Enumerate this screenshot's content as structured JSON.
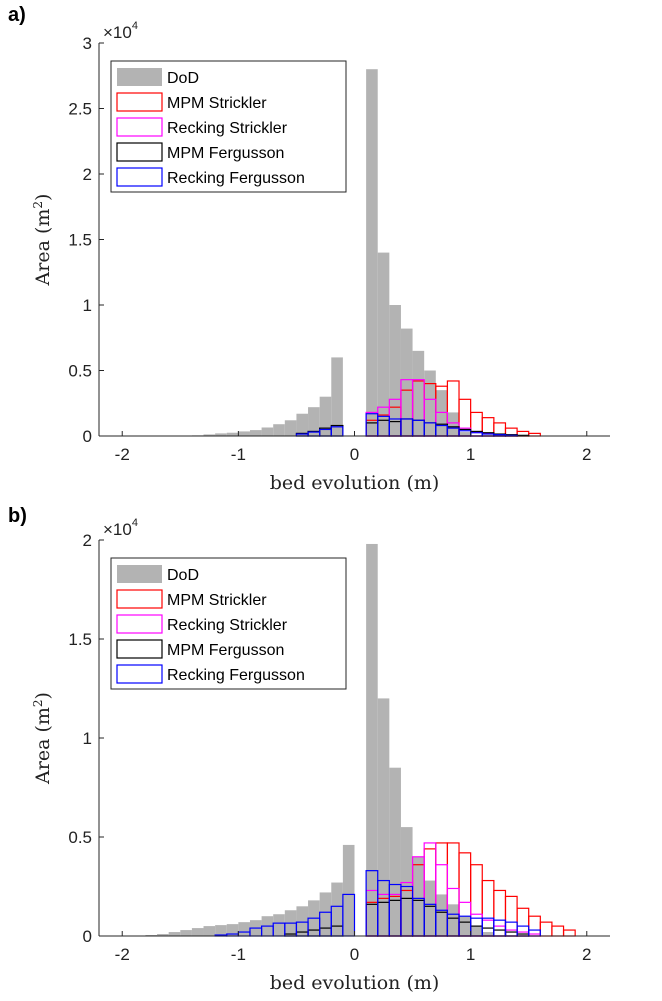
{
  "panels": [
    {
      "letter": "a)"
    },
    {
      "letter": "b)"
    }
  ],
  "chart_data": [
    {
      "type": "bar",
      "panel": "a)",
      "xlabel": "bed evolution (m)",
      "ylabel_main": "Area (m",
      "ylabel_sup": "2",
      "ylabel_end": ")",
      "xlim": [
        -2.2,
        2.2
      ],
      "ylim": [
        0,
        30000
      ],
      "xticks": [
        -2,
        -1,
        0,
        1,
        2
      ],
      "yticks": [
        0,
        5000,
        10000,
        15000,
        20000,
        25000,
        30000
      ],
      "ytick_labels": [
        "0",
        "0.5",
        "1",
        "1.5",
        "2",
        "2.5",
        "3"
      ],
      "exponent_base": "×10",
      "exponent_power": "4",
      "grid": false,
      "legend_position": "top-left",
      "bin_edges": [
        -2.0,
        -1.9,
        -1.8,
        -1.7,
        -1.6,
        -1.5,
        -1.4,
        -1.3,
        -1.2,
        -1.1,
        -1.0,
        -0.9,
        -0.8,
        -0.7,
        -0.6,
        -0.5,
        -0.4,
        -0.3,
        -0.2,
        -0.1,
        0.0,
        0.1,
        0.2,
        0.3,
        0.4,
        0.5,
        0.6,
        0.7,
        0.8,
        0.9,
        1.0,
        1.1,
        1.2,
        1.3,
        1.4,
        1.5,
        1.6,
        1.7,
        1.8,
        1.9,
        2.0
      ],
      "series": [
        {
          "name": "DoD",
          "style": "filled",
          "color": "#b3b3b3",
          "values": [
            0,
            0,
            0,
            0,
            10,
            20,
            50,
            120,
            200,
            250,
            350,
            450,
            650,
            900,
            1200,
            1700,
            2200,
            3000,
            6000,
            0,
            0,
            28000,
            14000,
            10000,
            8200,
            6500,
            5000,
            3500,
            1800,
            300,
            0,
            0,
            0,
            0,
            0,
            0,
            0,
            0,
            0,
            0
          ]
        },
        {
          "name": "MPM Strickler",
          "style": "step",
          "color": "#ff0000",
          "values": [
            0,
            0,
            0,
            0,
            0,
            0,
            0,
            0,
            0,
            0,
            0,
            0,
            0,
            0,
            0,
            0,
            0,
            0,
            0,
            0,
            0,
            1200,
            1600,
            2200,
            3500,
            4200,
            4000,
            3800,
            4200,
            2800,
            1800,
            1400,
            1000,
            600,
            350,
            200,
            0,
            0,
            0,
            0
          ]
        },
        {
          "name": "Recking Strickler",
          "style": "step",
          "color": "#ff00ff",
          "values": [
            0,
            0,
            0,
            0,
            0,
            0,
            0,
            0,
            0,
            0,
            0,
            0,
            0,
            0,
            0,
            0,
            0,
            0,
            0,
            0,
            0,
            1800,
            2200,
            2800,
            4300,
            4300,
            2800,
            1800,
            1000,
            600,
            300,
            200,
            100,
            50,
            0,
            0,
            0,
            0,
            0,
            0
          ]
        },
        {
          "name": "MPM Fergusson",
          "style": "step",
          "color": "#000000",
          "values": [
            0,
            0,
            0,
            0,
            0,
            0,
            0,
            0,
            0,
            0,
            0,
            0,
            0,
            0,
            0,
            200,
            350,
            600,
            800,
            0,
            0,
            1000,
            1200,
            1100,
            1300,
            1200,
            1000,
            900,
            700,
            500,
            350,
            250,
            150,
            100,
            50,
            0,
            0,
            0,
            0,
            0
          ]
        },
        {
          "name": "Recking Fergusson",
          "style": "step",
          "color": "#0000ff",
          "values": [
            0,
            0,
            0,
            0,
            0,
            0,
            0,
            0,
            0,
            0,
            0,
            0,
            0,
            0,
            0,
            150,
            300,
            500,
            700,
            0,
            0,
            1700,
            1500,
            1300,
            1300,
            1200,
            1000,
            800,
            600,
            400,
            250,
            150,
            100,
            50,
            0,
            0,
            0,
            0,
            0,
            0
          ]
        }
      ]
    },
    {
      "type": "bar",
      "panel": "b)",
      "xlabel": "bed evolution (m)",
      "ylabel_main": "Area (m",
      "ylabel_sup": "2",
      "ylabel_end": ")",
      "xlim": [
        -2.2,
        2.2
      ],
      "ylim": [
        0,
        20000
      ],
      "xticks": [
        -2,
        -1,
        0,
        1,
        2
      ],
      "yticks": [
        0,
        5000,
        10000,
        15000,
        20000
      ],
      "ytick_labels": [
        "0",
        "0.5",
        "1",
        "1.5",
        "2"
      ],
      "exponent_base": "×10",
      "exponent_power": "4",
      "grid": false,
      "legend_position": "top-left",
      "bin_edges": [
        -2.0,
        -1.9,
        -1.8,
        -1.7,
        -1.6,
        -1.5,
        -1.4,
        -1.3,
        -1.2,
        -1.1,
        -1.0,
        -0.9,
        -0.8,
        -0.7,
        -0.6,
        -0.5,
        -0.4,
        -0.3,
        -0.2,
        -0.1,
        0.0,
        0.1,
        0.2,
        0.3,
        0.4,
        0.5,
        0.6,
        0.7,
        0.8,
        0.9,
        1.0,
        1.1,
        1.2,
        1.3,
        1.4,
        1.5,
        1.6,
        1.7,
        1.8,
        1.9,
        2.0
      ],
      "series": [
        {
          "name": "DoD",
          "style": "filled",
          "color": "#b3b3b3",
          "values": [
            0,
            0,
            50,
            100,
            200,
            300,
            400,
            500,
            550,
            600,
            700,
            800,
            1000,
            1100,
            1300,
            1500,
            1800,
            2200,
            2700,
            4600,
            0,
            19800,
            12000,
            8500,
            5500,
            4000,
            2800,
            2100,
            1600,
            1000,
            500,
            200,
            0,
            0,
            0,
            0,
            0,
            0,
            0,
            0
          ]
        },
        {
          "name": "MPM Strickler",
          "style": "step",
          "color": "#ff0000",
          "values": [
            0,
            0,
            0,
            0,
            0,
            0,
            0,
            0,
            0,
            0,
            0,
            0,
            0,
            0,
            0,
            0,
            0,
            0,
            0,
            0,
            0,
            1700,
            1900,
            2000,
            2300,
            3600,
            4400,
            4700,
            4700,
            4200,
            3600,
            2800,
            2300,
            2000,
            1400,
            1000,
            700,
            500,
            300,
            0
          ]
        },
        {
          "name": "Recking Strickler",
          "style": "step",
          "color": "#ff00ff",
          "values": [
            0,
            0,
            0,
            0,
            0,
            0,
            0,
            0,
            0,
            0,
            0,
            0,
            0,
            0,
            0,
            0,
            0,
            0,
            0,
            0,
            0,
            2300,
            2100,
            2100,
            2700,
            4000,
            4700,
            3600,
            2400,
            1700,
            1100,
            800,
            500,
            300,
            200,
            100,
            0,
            0,
            0,
            0
          ]
        },
        {
          "name": "MPM Fergusson",
          "style": "step",
          "color": "#000000",
          "values": [
            0,
            0,
            0,
            0,
            0,
            0,
            0,
            0,
            0,
            0,
            0,
            0,
            0,
            0,
            100,
            200,
            300,
            400,
            500,
            0,
            0,
            1600,
            1700,
            1800,
            1900,
            1800,
            1500,
            1200,
            900,
            700,
            500,
            400,
            300,
            200,
            100,
            0,
            0,
            0,
            0,
            0
          ]
        },
        {
          "name": "Recking Fergusson",
          "style": "step",
          "color": "#0000ff",
          "values": [
            0,
            0,
            0,
            0,
            0,
            0,
            0,
            0,
            50,
            100,
            200,
            400,
            500,
            650,
            650,
            700,
            900,
            1200,
            1500,
            2100,
            0,
            3300,
            2800,
            2600,
            2500,
            1900,
            1600,
            1300,
            1100,
            1000,
            900,
            900,
            800,
            700,
            500,
            300,
            0,
            0,
            0,
            0
          ]
        }
      ]
    }
  ]
}
